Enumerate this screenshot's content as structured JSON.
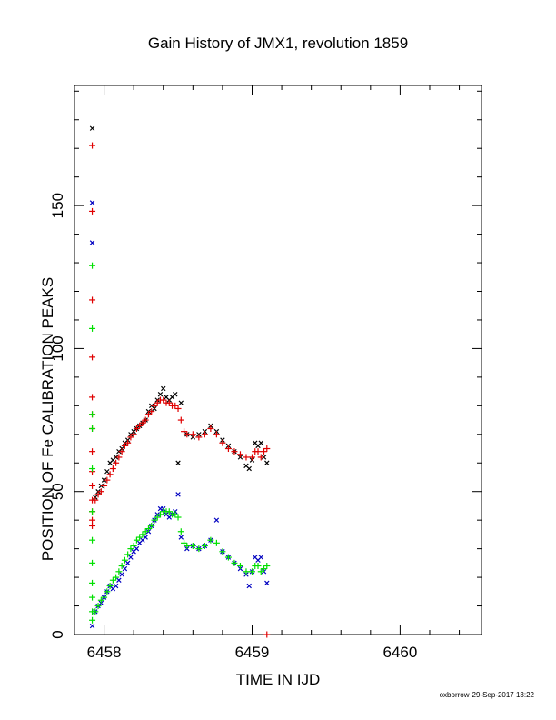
{
  "chart_data": {
    "type": "scatter",
    "title": "Gain History of JMX1, revolution 1859",
    "xlabel": "TIME IN IJD",
    "ylabel": "POSITION OF Fe CALIBRATION PEAKS",
    "xlim": [
      6457.8,
      6460.55
    ],
    "ylim": [
      0,
      192
    ],
    "xticks": [
      6458,
      6459,
      6460
    ],
    "yticks": [
      0,
      50,
      100,
      150
    ],
    "grid": false,
    "series": [
      {
        "marker": "x",
        "color": "#000000",
        "points": [
          [
            6457.92,
            177
          ],
          [
            6457.94,
            48
          ],
          [
            6457.96,
            50
          ],
          [
            6457.98,
            52
          ],
          [
            6458.0,
            54
          ],
          [
            6458.02,
            57
          ],
          [
            6458.04,
            60
          ],
          [
            6458.06,
            61
          ],
          [
            6458.08,
            62
          ],
          [
            6458.1,
            64
          ],
          [
            6458.12,
            65
          ],
          [
            6458.14,
            67
          ],
          [
            6458.16,
            68
          ],
          [
            6458.18,
            70
          ],
          [
            6458.2,
            71
          ],
          [
            6458.22,
            72
          ],
          [
            6458.24,
            73
          ],
          [
            6458.26,
            74
          ],
          [
            6458.28,
            75
          ],
          [
            6458.3,
            78
          ],
          [
            6458.32,
            80
          ],
          [
            6458.34,
            79
          ],
          [
            6458.36,
            82
          ],
          [
            6458.38,
            84
          ],
          [
            6458.4,
            86
          ],
          [
            6458.42,
            83
          ],
          [
            6458.44,
            82
          ],
          [
            6458.46,
            83
          ],
          [
            6458.48,
            84
          ],
          [
            6458.5,
            60
          ],
          [
            6458.52,
            81
          ],
          [
            6458.56,
            70
          ],
          [
            6458.6,
            69
          ],
          [
            6458.64,
            70
          ],
          [
            6458.68,
            71
          ],
          [
            6458.72,
            73
          ],
          [
            6458.76,
            71
          ],
          [
            6458.8,
            68
          ],
          [
            6458.84,
            66
          ],
          [
            6458.88,
            64
          ],
          [
            6458.92,
            62
          ],
          [
            6458.96,
            59
          ],
          [
            6458.98,
            58
          ],
          [
            6459.0,
            61
          ],
          [
            6459.02,
            67
          ],
          [
            6459.04,
            66
          ],
          [
            6459.06,
            67
          ],
          [
            6459.08,
            62
          ],
          [
            6459.1,
            60
          ]
        ]
      },
      {
        "marker": "+",
        "color": "#e00000",
        "points": [
          [
            6457.92,
            171
          ],
          [
            6457.92,
            148
          ],
          [
            6457.92,
            117
          ],
          [
            6457.92,
            97
          ],
          [
            6457.92,
            83
          ],
          [
            6457.92,
            77
          ],
          [
            6457.92,
            72
          ],
          [
            6457.92,
            64
          ],
          [
            6457.92,
            57
          ],
          [
            6457.92,
            52
          ],
          [
            6457.92,
            47
          ],
          [
            6457.92,
            43
          ],
          [
            6457.92,
            40
          ],
          [
            6457.92,
            38
          ],
          [
            6457.94,
            47
          ],
          [
            6457.96,
            49
          ],
          [
            6457.98,
            50
          ],
          [
            6458.0,
            52
          ],
          [
            6458.02,
            54
          ],
          [
            6458.04,
            56
          ],
          [
            6458.06,
            58
          ],
          [
            6458.08,
            60
          ],
          [
            6458.1,
            62
          ],
          [
            6458.12,
            64
          ],
          [
            6458.14,
            66
          ],
          [
            6458.16,
            67
          ],
          [
            6458.18,
            69
          ],
          [
            6458.2,
            70
          ],
          [
            6458.22,
            72
          ],
          [
            6458.24,
            73
          ],
          [
            6458.26,
            74
          ],
          [
            6458.28,
            75
          ],
          [
            6458.3,
            77
          ],
          [
            6458.32,
            78
          ],
          [
            6458.34,
            80
          ],
          [
            6458.36,
            81
          ],
          [
            6458.38,
            82
          ],
          [
            6458.4,
            82
          ],
          [
            6458.42,
            81
          ],
          [
            6458.44,
            81
          ],
          [
            6458.46,
            80
          ],
          [
            6458.48,
            80
          ],
          [
            6458.5,
            79
          ],
          [
            6458.52,
            75
          ],
          [
            6458.54,
            71
          ],
          [
            6458.56,
            70
          ],
          [
            6458.6,
            70
          ],
          [
            6458.64,
            69
          ],
          [
            6458.68,
            70
          ],
          [
            6458.72,
            72
          ],
          [
            6458.76,
            70
          ],
          [
            6458.8,
            67
          ],
          [
            6458.84,
            65
          ],
          [
            6458.88,
            64
          ],
          [
            6458.92,
            63
          ],
          [
            6458.96,
            62
          ],
          [
            6459.0,
            62
          ],
          [
            6459.02,
            64
          ],
          [
            6459.04,
            64
          ],
          [
            6459.06,
            62
          ],
          [
            6459.08,
            64
          ],
          [
            6459.1,
            65
          ],
          [
            6459.1,
            0
          ]
        ]
      },
      {
        "marker": "x",
        "color": "#0000c0",
        "points": [
          [
            6457.92,
            151
          ],
          [
            6457.92,
            137
          ],
          [
            6457.92,
            3
          ],
          [
            6457.94,
            8
          ],
          [
            6457.96,
            10
          ],
          [
            6457.98,
            11
          ],
          [
            6458.0,
            13
          ],
          [
            6458.02,
            15
          ],
          [
            6458.04,
            17
          ],
          [
            6458.06,
            16
          ],
          [
            6458.08,
            17
          ],
          [
            6458.1,
            19
          ],
          [
            6458.12,
            21
          ],
          [
            6458.14,
            23
          ],
          [
            6458.16,
            25
          ],
          [
            6458.18,
            27
          ],
          [
            6458.2,
            29
          ],
          [
            6458.22,
            30
          ],
          [
            6458.24,
            32
          ],
          [
            6458.26,
            33
          ],
          [
            6458.28,
            34
          ],
          [
            6458.3,
            36
          ],
          [
            6458.32,
            38
          ],
          [
            6458.34,
            40
          ],
          [
            6458.36,
            42
          ],
          [
            6458.38,
            44
          ],
          [
            6458.4,
            44
          ],
          [
            6458.42,
            42
          ],
          [
            6458.44,
            41
          ],
          [
            6458.46,
            42
          ],
          [
            6458.48,
            43
          ],
          [
            6458.5,
            49
          ],
          [
            6458.52,
            34
          ],
          [
            6458.56,
            30
          ],
          [
            6458.6,
            31
          ],
          [
            6458.64,
            30
          ],
          [
            6458.68,
            31
          ],
          [
            6458.72,
            33
          ],
          [
            6458.76,
            40
          ],
          [
            6458.8,
            29
          ],
          [
            6458.84,
            27
          ],
          [
            6458.88,
            25
          ],
          [
            6458.92,
            23
          ],
          [
            6458.96,
            21
          ],
          [
            6458.98,
            17
          ],
          [
            6459.0,
            22
          ],
          [
            6459.02,
            27
          ],
          [
            6459.04,
            26
          ],
          [
            6459.06,
            27
          ],
          [
            6459.08,
            22
          ],
          [
            6459.1,
            18
          ]
        ]
      },
      {
        "marker": "+",
        "color": "#00e000",
        "points": [
          [
            6457.92,
            129
          ],
          [
            6457.92,
            107
          ],
          [
            6457.92,
            77
          ],
          [
            6457.92,
            72
          ],
          [
            6457.92,
            58
          ],
          [
            6457.92,
            43
          ],
          [
            6457.92,
            33
          ],
          [
            6457.92,
            25
          ],
          [
            6457.92,
            18
          ],
          [
            6457.92,
            13
          ],
          [
            6457.92,
            8
          ],
          [
            6457.92,
            5
          ],
          [
            6457.94,
            8
          ],
          [
            6457.96,
            10
          ],
          [
            6457.98,
            12
          ],
          [
            6458.0,
            13
          ],
          [
            6458.02,
            15
          ],
          [
            6458.04,
            17
          ],
          [
            6458.06,
            19
          ],
          [
            6458.08,
            20
          ],
          [
            6458.1,
            22
          ],
          [
            6458.12,
            24
          ],
          [
            6458.14,
            26
          ],
          [
            6458.16,
            28
          ],
          [
            6458.18,
            30
          ],
          [
            6458.2,
            31
          ],
          [
            6458.22,
            33
          ],
          [
            6458.24,
            34
          ],
          [
            6458.26,
            35
          ],
          [
            6458.28,
            36
          ],
          [
            6458.3,
            37
          ],
          [
            6458.32,
            38
          ],
          [
            6458.34,
            40
          ],
          [
            6458.36,
            41
          ],
          [
            6458.38,
            42
          ],
          [
            6458.4,
            43
          ],
          [
            6458.42,
            43
          ],
          [
            6458.44,
            43
          ],
          [
            6458.46,
            42
          ],
          [
            6458.48,
            42
          ],
          [
            6458.5,
            41
          ],
          [
            6458.52,
            36
          ],
          [
            6458.54,
            32
          ],
          [
            6458.56,
            31
          ],
          [
            6458.6,
            31
          ],
          [
            6458.64,
            30
          ],
          [
            6458.68,
            31
          ],
          [
            6458.72,
            33
          ],
          [
            6458.76,
            32
          ],
          [
            6458.8,
            29
          ],
          [
            6458.84,
            27
          ],
          [
            6458.88,
            25
          ],
          [
            6458.92,
            24
          ],
          [
            6458.96,
            22
          ],
          [
            6459.0,
            22
          ],
          [
            6459.02,
            24
          ],
          [
            6459.04,
            24
          ],
          [
            6459.06,
            22
          ],
          [
            6459.08,
            23
          ],
          [
            6459.1,
            24
          ]
        ]
      }
    ]
  },
  "footer": {
    "user": "oxborrow",
    "timestamp": "29-Sep-2017 13:22"
  }
}
